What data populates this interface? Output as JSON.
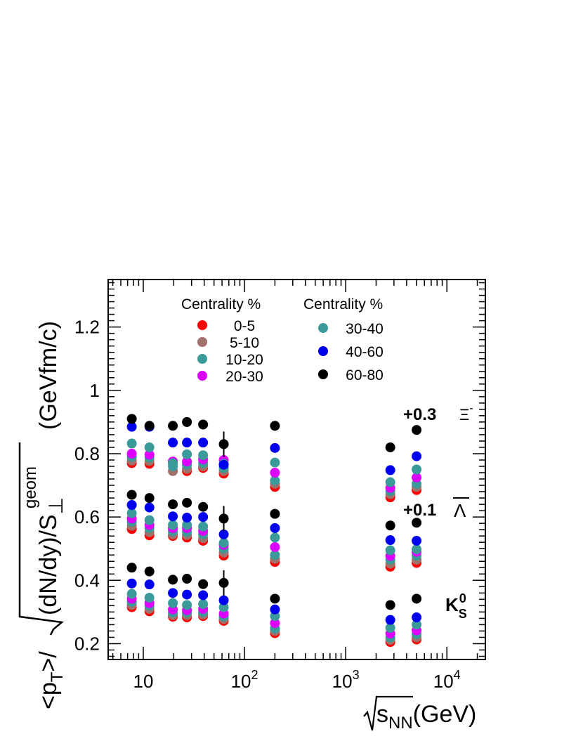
{
  "chart_data": {
    "type": "scatter",
    "title": "",
    "xlabel": "√s_NN(GeV)",
    "ylabel": "<p_T>/√((dN/dy)/S_⊥^geom) (GeVfm/c)",
    "x_scale": "log",
    "xlim": [
      4.5,
      24000
    ],
    "ylim": [
      0.15,
      1.35
    ],
    "x_ticks": [
      10,
      100,
      1000,
      10000
    ],
    "x_tick_labels": [
      "10",
      "10²",
      "10³",
      "10⁴"
    ],
    "y_ticks": [
      0.2,
      0.4,
      0.6,
      0.8,
      1.0,
      1.2
    ],
    "y_tick_labels": [
      "0.2",
      "0.4",
      "0.6",
      "0.8",
      "1",
      "1.2"
    ],
    "grid": false,
    "x": [
      7.7,
      11.5,
      19.6,
      27,
      39,
      62.4,
      200,
      2760,
      5020
    ],
    "legend": {
      "col1_title": "Centrality %",
      "col2_title": "Centrality %",
      "placement": "top-center"
    },
    "species_labels": [
      {
        "text": "+0.3",
        "particle": "Ξ⁻"
      },
      {
        "text": "+0.1",
        "particle": "Λ̄"
      },
      {
        "text": "",
        "particle": "K⁰_S"
      }
    ],
    "series": [
      {
        "name": "0-5",
        "color": "#ff0000",
        "K0S": [
          0.315,
          0.302,
          0.285,
          0.283,
          0.287,
          0.272,
          0.233,
          0.205,
          0.213
        ],
        "Lambda": [
          0.562,
          0.542,
          0.54,
          0.535,
          0.525,
          0.478,
          0.458,
          0.443,
          0.455
        ],
        "Xi": [
          0.77,
          0.768,
          0.775,
          0.745,
          0.755,
          0.737,
          0.695,
          0.662,
          0.685
        ]
      },
      {
        "name": "5-10",
        "color": "#a0706a",
        "K0S": [
          0.322,
          0.31,
          0.29,
          0.29,
          0.292,
          0.278,
          0.24,
          0.212,
          0.22
        ],
        "Lambda": [
          0.572,
          0.552,
          0.545,
          0.543,
          0.533,
          0.488,
          0.468,
          0.453,
          0.465
        ],
        "Xi": [
          0.778,
          0.777,
          0.745,
          0.752,
          0.76,
          0.745,
          0.705,
          0.672,
          0.695
        ]
      },
      {
        "name": "10-20",
        "color": "#3a9a9a",
        "K0S": [
          0.332,
          0.32,
          0.298,
          0.298,
          0.3,
          0.286,
          0.248,
          0.22,
          0.23
        ],
        "Lambda": [
          0.585,
          0.565,
          0.555,
          0.553,
          0.545,
          0.5,
          0.48,
          0.465,
          0.478
        ],
        "Xi": [
          0.79,
          0.788,
          0.76,
          0.765,
          0.77,
          0.755,
          0.715,
          0.682,
          0.705
        ]
      },
      {
        "name": "20-30",
        "color": "#dd00ff",
        "K0S": [
          0.342,
          0.328,
          0.308,
          0.306,
          0.31,
          0.295,
          0.265,
          0.232,
          0.242
        ],
        "Lambda": [
          0.595,
          0.575,
          0.565,
          0.565,
          0.556,
          0.512,
          0.505,
          0.477,
          0.49
        ],
        "Xi": [
          0.8,
          0.797,
          0.775,
          0.775,
          0.782,
          0.78,
          0.74,
          0.692,
          0.725
        ]
      },
      {
        "name": "30-40",
        "color": "#3a9a9a",
        "K0S": [
          0.357,
          0.345,
          0.328,
          0.322,
          0.325,
          0.315,
          0.287,
          0.25,
          0.26
        ],
        "Lambda": [
          0.612,
          0.59,
          0.575,
          0.575,
          0.57,
          0.518,
          0.535,
          0.495,
          0.498
        ],
        "Xi": [
          0.832,
          0.82,
          0.77,
          0.798,
          0.795,
          0.768,
          0.772,
          0.71,
          0.75
        ]
      },
      {
        "name": "40-60",
        "color": "#0000ee",
        "K0S": [
          0.39,
          0.387,
          0.36,
          0.355,
          0.353,
          0.337,
          0.308,
          0.275,
          0.283
        ],
        "Lambda": [
          0.638,
          0.63,
          0.602,
          0.598,
          0.6,
          0.545,
          0.565,
          0.527,
          0.525
        ],
        "Xi": [
          0.885,
          0.885,
          0.835,
          0.835,
          0.835,
          0.765,
          0.818,
          0.748,
          0.792
        ]
      },
      {
        "name": "60-80",
        "color": "#000000",
        "K0S": [
          0.44,
          0.428,
          0.402,
          0.405,
          0.388,
          0.392,
          0.342,
          0.322,
          0.342
        ],
        "Lambda": [
          0.67,
          0.66,
          0.64,
          0.645,
          0.632,
          0.595,
          0.61,
          0.573,
          0.582
        ],
        "Xi": [
          0.91,
          0.888,
          0.888,
          0.9,
          0.892,
          0.83,
          0.888,
          0.82,
          0.875
        ]
      }
    ]
  }
}
